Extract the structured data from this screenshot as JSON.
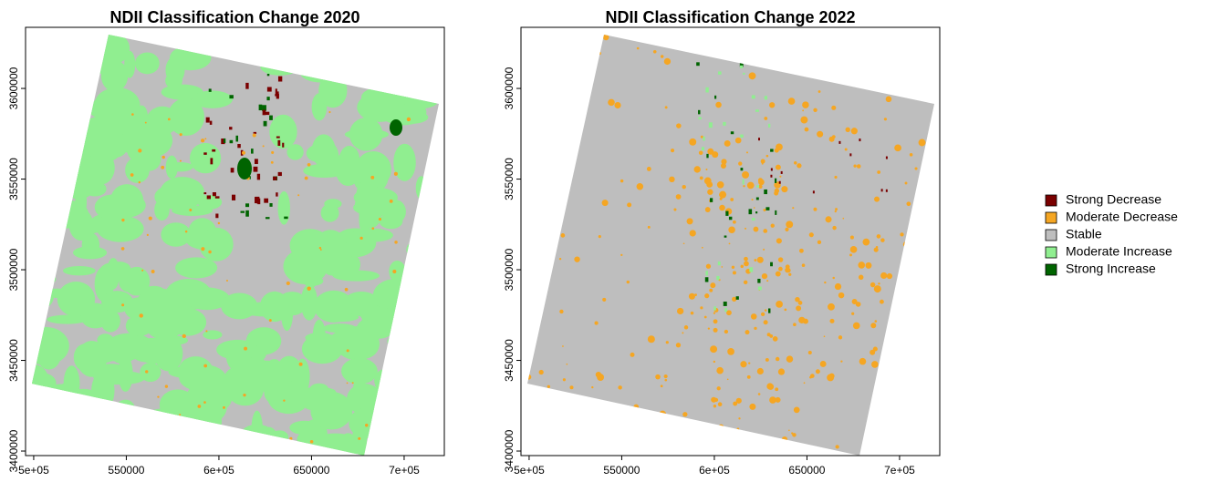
{
  "maps": [
    {
      "title": "NDII Classification Change 2020",
      "xlim": [
        495600,
        721700
      ],
      "ylim": [
        3397500,
        3633700
      ],
      "xticks": [
        {
          "value": 500000,
          "label": "5e+05"
        },
        550000,
        {
          "value": 600000,
          "label": "6e+05"
        },
        650000,
        {
          "value": 700000,
          "label": "7e+05"
        }
      ],
      "yticks": [
        3400000,
        3450000,
        3500000,
        3550000,
        3600000
      ]
    },
    {
      "title": "NDII Classification Change 2022",
      "xlim": [
        495600,
        721700
      ],
      "ylim": [
        3397500,
        3633700
      ],
      "xticks": [
        {
          "value": 500000,
          "label": "5e+05"
        },
        550000,
        {
          "value": 600000,
          "label": "6e+05"
        },
        650000,
        {
          "value": 700000,
          "label": "7e+05"
        }
      ],
      "yticks": [
        3400000,
        3450000,
        3500000,
        3550000,
        3600000
      ]
    }
  ],
  "legend": [
    {
      "label": "Strong Decrease",
      "color": "#7a0000"
    },
    {
      "label": "Moderate Decrease",
      "color": "#f5a623"
    },
    {
      "label": "Stable",
      "color": "#bebebe"
    },
    {
      "label": "Moderate Increase",
      "color": "#90ee90"
    },
    {
      "label": "Strong Increase",
      "color": "#006400"
    }
  ]
}
